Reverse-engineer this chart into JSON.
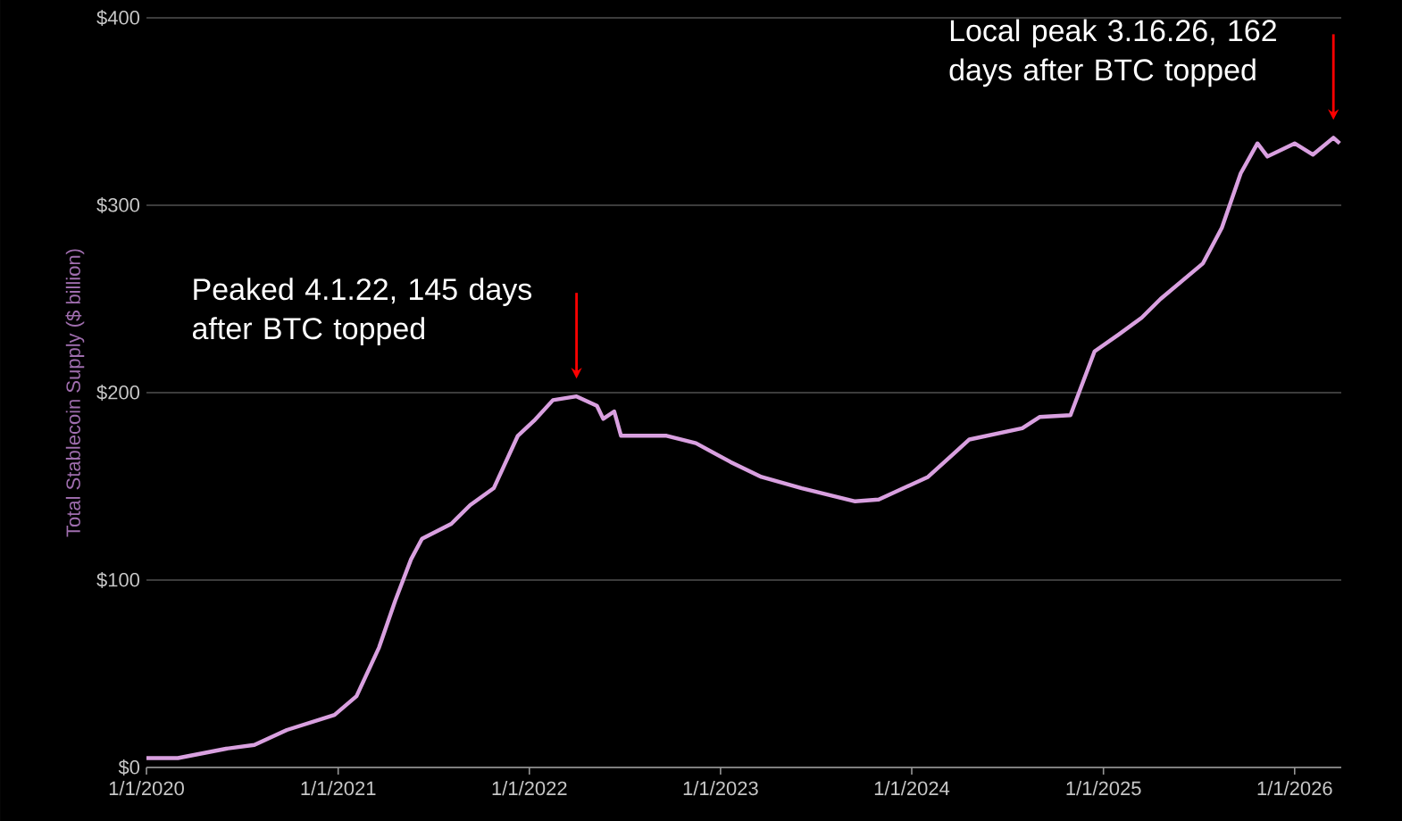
{
  "chart_data": {
    "type": "line",
    "ylabel": "Total Stablecoin Supply ($ billion)",
    "color": "#d9a0e0",
    "x": [
      "2020-01-01",
      "2020-03-01",
      "2020-06-01",
      "2020-07-25",
      "2020-09-25",
      "2020-12-25",
      "2021-02-05",
      "2021-03-20",
      "2021-04-20",
      "2021-05-20",
      "2021-06-10",
      "2021-08-05",
      "2021-09-10",
      "2021-10-25",
      "2021-12-10",
      "2022-01-10",
      "2022-02-15",
      "2022-04-01",
      "2022-05-10",
      "2022-05-22",
      "2022-06-12",
      "2022-06-25",
      "2022-09-20",
      "2022-11-15",
      "2023-01-20",
      "2023-03-20",
      "2023-06-05",
      "2023-09-15",
      "2023-10-30",
      "2024-02-01",
      "2024-04-20",
      "2024-07-30",
      "2024-09-01",
      "2024-10-30",
      "2024-12-15",
      "2025-01-30",
      "2025-03-15",
      "2025-04-20",
      "2025-07-10",
      "2025-08-15",
      "2025-09-20",
      "2025-10-22",
      "2025-11-10",
      "2026-01-01",
      "2026-02-05",
      "2026-03-16",
      "2026-03-28"
    ],
    "values": [
      5,
      5,
      10,
      12,
      20,
      28,
      38,
      64,
      89,
      111,
      122,
      130,
      140,
      149,
      177,
      185,
      196,
      198,
      193,
      186,
      190,
      177,
      177,
      173,
      163,
      155,
      149,
      142,
      143,
      155,
      175,
      181,
      187,
      188,
      222,
      231,
      240,
      250,
      269,
      288,
      317,
      333,
      326,
      333,
      327,
      336,
      333
    ],
    "xlim": [
      "2020-01-01",
      "2026-03-31"
    ],
    "ylim": [
      0,
      400
    ],
    "xticks": [
      {
        "value": "2020-01-01",
        "label": "1/1/2020"
      },
      {
        "value": "2021-01-01",
        "label": "1/1/2021"
      },
      {
        "value": "2022-01-01",
        "label": "1/1/2022"
      },
      {
        "value": "2023-01-01",
        "label": "1/1/2023"
      },
      {
        "value": "2024-01-01",
        "label": "1/1/2024"
      },
      {
        "value": "2025-01-01",
        "label": "1/1/2025"
      },
      {
        "value": "2026-01-01",
        "label": "1/1/2026"
      }
    ],
    "yticks": [
      {
        "value": 0,
        "label": "$0"
      },
      {
        "value": 100,
        "label": "$100"
      },
      {
        "value": 200,
        "label": "$200"
      },
      {
        "value": 300,
        "label": "$300"
      },
      {
        "value": 400,
        "label": "$400"
      }
    ],
    "grid": "y",
    "annotations": [
      {
        "text": "Peaked 4.1.22, 145 days after BTC topped",
        "x": "2022-04-01",
        "y": 198
      },
      {
        "text": "Local peak 3.16.26, 162 days after BTC topped",
        "x": "2026-03-16",
        "y": 336
      }
    ]
  }
}
